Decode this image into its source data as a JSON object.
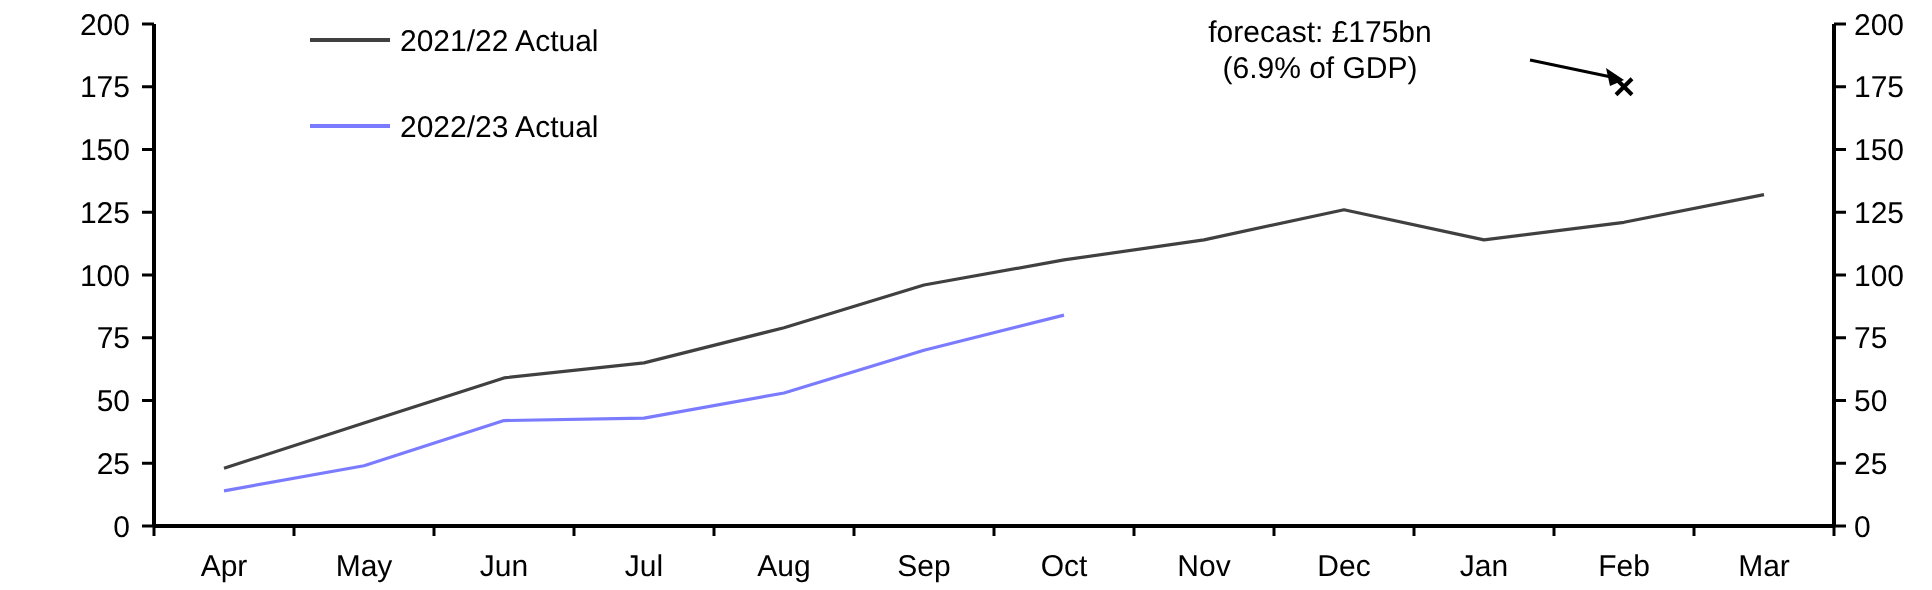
{
  "chart_data": {
    "type": "line",
    "categories": [
      "Apr",
      "May",
      "Jun",
      "Jul",
      "Aug",
      "Sep",
      "Oct",
      "Nov",
      "Dec",
      "Jan",
      "Feb",
      "Mar"
    ],
    "series": [
      {
        "name": "2021/22 Actual",
        "color": "#404040",
        "values": [
          23,
          41,
          59,
          65,
          79,
          96,
          106,
          114,
          126,
          114,
          121,
          132
        ]
      },
      {
        "name": "2022/23 Actual",
        "color": "#7b7bff",
        "values": [
          14,
          24,
          42,
          43,
          53,
          70,
          84,
          null,
          null,
          null,
          null,
          null
        ]
      },
      {
        "type": "scatter",
        "marker": "cross",
        "color": "#000000",
        "values": [
          null,
          null,
          null,
          null,
          null,
          null,
          null,
          null,
          null,
          null,
          175,
          null
        ]
      }
    ],
    "ylim": [
      0,
      200
    ],
    "yticks": [
      0,
      25,
      50,
      75,
      100,
      125,
      150,
      175,
      200
    ],
    "y2lim": [
      0,
      200
    ],
    "y2ticks": [
      0,
      25,
      50,
      75,
      100,
      125,
      150,
      175,
      200
    ],
    "legend": "top left",
    "grid": false,
    "annotations": [
      "forecast: £175bn\n(6.9% of GDP)"
    ]
  }
}
